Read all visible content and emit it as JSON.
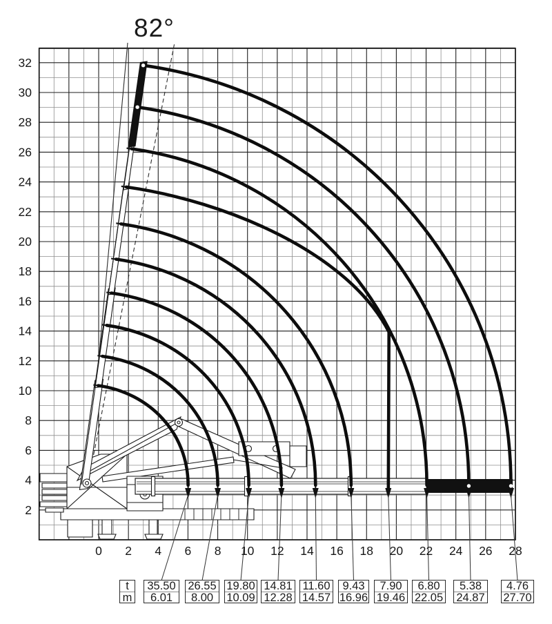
{
  "chart": {
    "angle_label": "82°",
    "x_axis_labels": [
      0,
      2,
      4,
      6,
      8,
      10,
      12,
      14,
      16,
      18,
      20,
      22,
      24,
      26,
      28
    ],
    "y_axis_labels": [
      2,
      4,
      6,
      8,
      10,
      12,
      14,
      16,
      18,
      20,
      22,
      24,
      26,
      28,
      30,
      32
    ]
  },
  "table": {
    "unit_top": "t",
    "unit_bottom": "m",
    "columns": [
      {
        "t": "35.50",
        "m": "6.01"
      },
      {
        "t": "26.55",
        "m": "8.00"
      },
      {
        "t": "19.80",
        "m": "10.09"
      },
      {
        "t": "14.81",
        "m": "12.28"
      },
      {
        "t": "11.60",
        "m": "14.57"
      },
      {
        "t": "9.43",
        "m": "16.96"
      },
      {
        "t": "7.90",
        "m": "19.46"
      },
      {
        "t": "6.80",
        "m": "22.05"
      },
      {
        "t": "5.38",
        "m": "24.87"
      },
      {
        "t": "4.76",
        "m": "27.70"
      }
    ]
  },
  "chart_data": {
    "type": "line",
    "title": "82°",
    "description_visible_text_only": "Crane working range diagram: boom shown at 82° and horizontal; arcs link vertical tip heights to horizontal outreach",
    "boom_angle_deg": 82,
    "x_range": [
      -4,
      28
    ],
    "y_range": [
      0,
      33
    ],
    "grid": true,
    "x_tick_step": 2,
    "y_tick_step": 2,
    "boom_pivot": {
      "x": -1,
      "y": 3.4
    },
    "curves": [
      {
        "capacity_t": 35.5,
        "reach_m": 6.01
      },
      {
        "capacity_t": 26.55,
        "reach_m": 8.0
      },
      {
        "capacity_t": 19.8,
        "reach_m": 10.09
      },
      {
        "capacity_t": 14.81,
        "reach_m": 12.28
      },
      {
        "capacity_t": 11.6,
        "reach_m": 14.57
      },
      {
        "capacity_t": 9.43,
        "reach_m": 16.96
      },
      {
        "capacity_t": 7.9,
        "reach_m": 19.46
      },
      {
        "capacity_t": 6.8,
        "reach_m": 22.05
      },
      {
        "capacity_t": 5.38,
        "reach_m": 24.87
      },
      {
        "capacity_t": 4.76,
        "reach_m": 27.7
      }
    ]
  }
}
